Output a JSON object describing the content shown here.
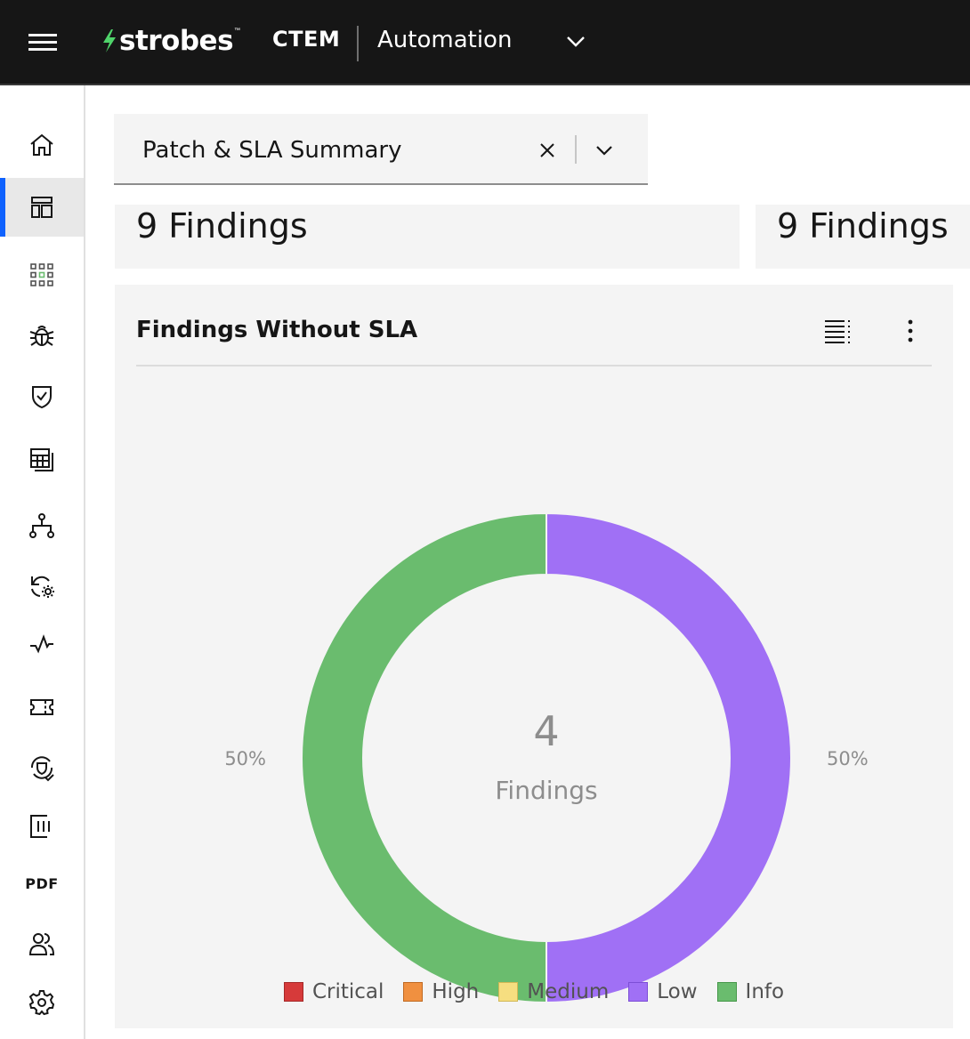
{
  "header": {
    "logo_text": "strobes",
    "logo_tm": "™",
    "product": "CTEM",
    "subproduct": "Automation"
  },
  "sidenav": {
    "items": [
      {
        "name": "home",
        "icon": "home-icon"
      },
      {
        "name": "dashboards",
        "icon": "dashboard-icon",
        "active": true
      },
      {
        "name": "apps",
        "icon": "app-grid-icon"
      },
      {
        "name": "findings",
        "icon": "bug-icon"
      },
      {
        "name": "security",
        "icon": "shield-check-icon"
      },
      {
        "name": "tables",
        "icon": "table-icon"
      },
      {
        "name": "topology",
        "icon": "network-icon"
      },
      {
        "name": "automation",
        "icon": "renew-settings-icon"
      },
      {
        "name": "activity",
        "icon": "pulse-icon"
      },
      {
        "name": "tickets",
        "icon": "ticket-icon"
      },
      {
        "name": "policies",
        "icon": "shield-refresh-icon"
      },
      {
        "name": "columns",
        "icon": "column-icon"
      },
      {
        "name": "pdf",
        "label": "PDF"
      },
      {
        "name": "users",
        "icon": "users-icon"
      },
      {
        "name": "settings",
        "icon": "gear-icon"
      }
    ]
  },
  "dashboard_select": {
    "value": "Patch & SLA Summary"
  },
  "summary_cards": [
    {
      "value": "9 Findings"
    },
    {
      "value": "9 Findings"
    }
  ],
  "chart_card": {
    "title": "Findings Without SLA",
    "center_value": "4",
    "center_label": "Findings"
  },
  "chart_data": {
    "type": "pie",
    "title": "Findings Without SLA",
    "center_total": 4,
    "slices": [
      {
        "name": "Low",
        "value": 2,
        "percent_label": "50%",
        "color": "#a070f5"
      },
      {
        "name": "Info",
        "value": 2,
        "percent_label": "50%",
        "color": "#6abc6e"
      }
    ],
    "legend": [
      {
        "name": "Critical",
        "color": "#d63a3a",
        "border": "#a52828"
      },
      {
        "name": "High",
        "color": "#f09040",
        "border": "#c06a22"
      },
      {
        "name": "Medium",
        "color": "#f6de80",
        "border": "#d2b854"
      },
      {
        "name": "Low",
        "color": "#a070f5",
        "border": "#7c4ed6"
      },
      {
        "name": "Info",
        "color": "#6abc6e",
        "border": "#46984a"
      }
    ],
    "legend_position": "bottom"
  }
}
